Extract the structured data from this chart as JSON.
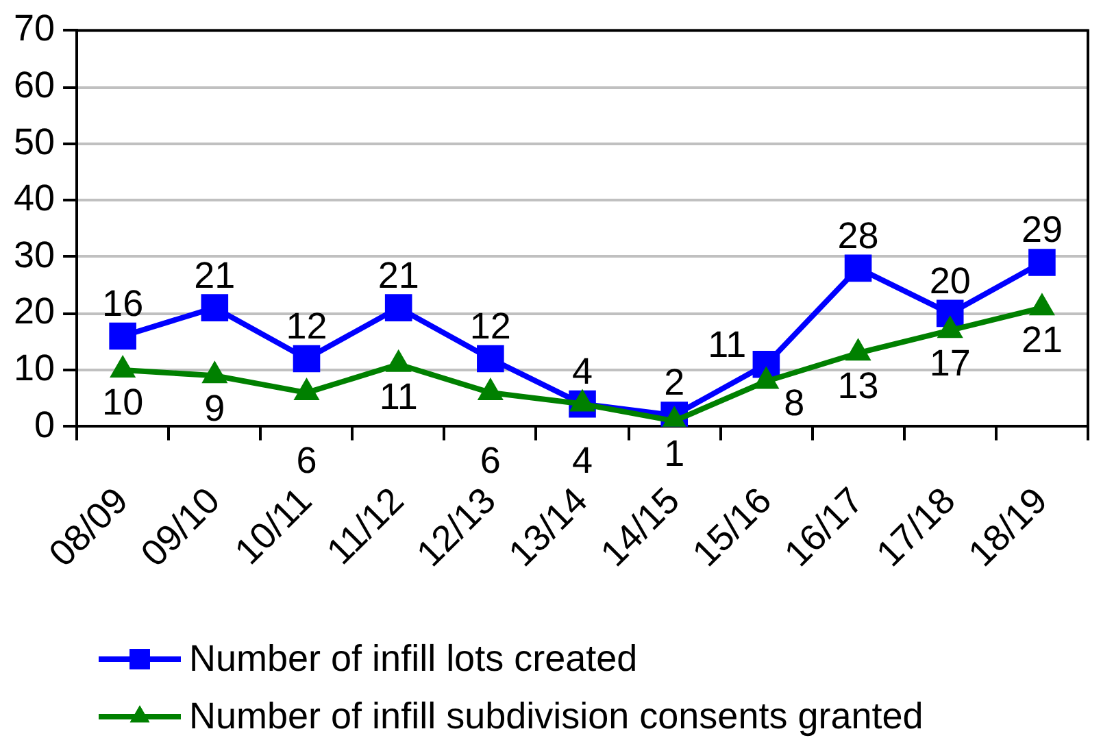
{
  "chart_data": {
    "type": "line",
    "categories": [
      "08/09",
      "09/10",
      "10/11",
      "11/12",
      "12/13",
      "13/14",
      "14/15",
      "15/16",
      "16/17",
      "17/18",
      "18/19"
    ],
    "series": [
      {
        "name": "Number of infill lots created",
        "color": "#0000ff",
        "marker": "square",
        "values": [
          16,
          21,
          12,
          21,
          12,
          4,
          2,
          11,
          28,
          20,
          29
        ]
      },
      {
        "name": "Number of infill subdivision consents granted",
        "color": "#008000",
        "marker": "triangle",
        "values": [
          10,
          9,
          6,
          11,
          6,
          4,
          1,
          8,
          13,
          17,
          21
        ]
      }
    ],
    "ylim": [
      0,
      70
    ],
    "yticks": [
      0,
      10,
      20,
      30,
      40,
      50,
      60,
      70
    ],
    "grid": "y",
    "legend": "bottom left",
    "data_labels": true
  }
}
